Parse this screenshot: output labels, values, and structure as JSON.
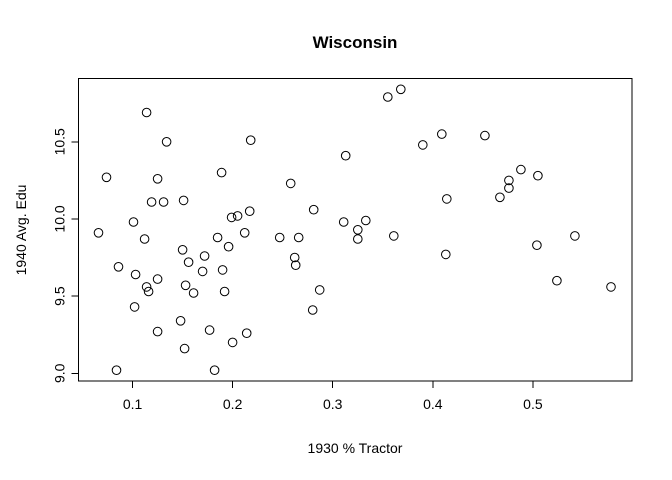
{
  "title": "Wisconsin",
  "chart_data": {
    "type": "scatter",
    "title": "Wisconsin",
    "xlabel": "1930 % Tractor",
    "ylabel": "1940 Avg. Edu",
    "xlim": [
      0.046,
      0.599
    ],
    "ylim": [
      8.95,
      10.91
    ],
    "x_ticks": [
      0.1,
      0.2,
      0.3,
      0.4,
      0.5
    ],
    "x_tick_labels": [
      "0.1",
      "0.2",
      "0.3",
      "0.4",
      "0.5"
    ],
    "y_ticks": [
      9.0,
      9.5,
      10.0,
      10.5
    ],
    "y_tick_labels": [
      "9.0",
      "9.5",
      "10.0",
      "10.5"
    ],
    "grid": false,
    "legend": null,
    "marker": "open-circle",
    "colors": {
      "background": "#ffffff",
      "foreground": "#000000"
    },
    "points": [
      [
        0.114,
        10.69
      ],
      [
        0.134,
        10.5
      ],
      [
        0.218,
        10.51
      ],
      [
        0.074,
        10.27
      ],
      [
        0.125,
        10.26
      ],
      [
        0.189,
        10.3
      ],
      [
        0.119,
        10.11
      ],
      [
        0.131,
        10.11
      ],
      [
        0.151,
        10.12
      ],
      [
        0.101,
        9.98
      ],
      [
        0.066,
        9.91
      ],
      [
        0.199,
        10.01
      ],
      [
        0.205,
        10.02
      ],
      [
        0.217,
        10.05
      ],
      [
        0.212,
        9.91
      ],
      [
        0.368,
        10.84
      ],
      [
        0.355,
        10.79
      ],
      [
        0.409,
        10.55
      ],
      [
        0.39,
        10.48
      ],
      [
        0.313,
        10.41
      ],
      [
        0.258,
        10.23
      ],
      [
        0.414,
        10.13
      ],
      [
        0.281,
        10.06
      ],
      [
        0.311,
        9.98
      ],
      [
        0.333,
        9.99
      ],
      [
        0.325,
        9.93
      ],
      [
        0.325,
        9.87
      ],
      [
        0.266,
        9.88
      ],
      [
        0.361,
        9.89
      ],
      [
        0.413,
        9.77
      ],
      [
        0.452,
        10.54
      ],
      [
        0.488,
        10.32
      ],
      [
        0.505,
        10.28
      ],
      [
        0.476,
        10.25
      ],
      [
        0.476,
        10.2
      ],
      [
        0.467,
        10.14
      ],
      [
        0.112,
        9.87
      ],
      [
        0.185,
        9.88
      ],
      [
        0.196,
        9.82
      ],
      [
        0.15,
        9.8
      ],
      [
        0.172,
        9.76
      ],
      [
        0.156,
        9.72
      ],
      [
        0.086,
        9.69
      ],
      [
        0.17,
        9.66
      ],
      [
        0.19,
        9.67
      ],
      [
        0.103,
        9.64
      ],
      [
        0.125,
        9.61
      ],
      [
        0.114,
        9.56
      ],
      [
        0.116,
        9.53
      ],
      [
        0.153,
        9.57
      ],
      [
        0.161,
        9.52
      ],
      [
        0.192,
        9.53
      ],
      [
        0.102,
        9.43
      ],
      [
        0.148,
        9.34
      ],
      [
        0.125,
        9.27
      ],
      [
        0.177,
        9.28
      ],
      [
        0.214,
        9.26
      ],
      [
        0.2,
        9.2
      ],
      [
        0.152,
        9.16
      ],
      [
        0.084,
        9.02
      ],
      [
        0.182,
        9.02
      ],
      [
        0.247,
        9.88
      ],
      [
        0.262,
        9.75
      ],
      [
        0.263,
        9.7
      ],
      [
        0.287,
        9.54
      ],
      [
        0.28,
        9.41
      ],
      [
        0.504,
        9.83
      ],
      [
        0.542,
        9.89
      ],
      [
        0.524,
        9.6
      ],
      [
        0.578,
        9.56
      ]
    ]
  }
}
